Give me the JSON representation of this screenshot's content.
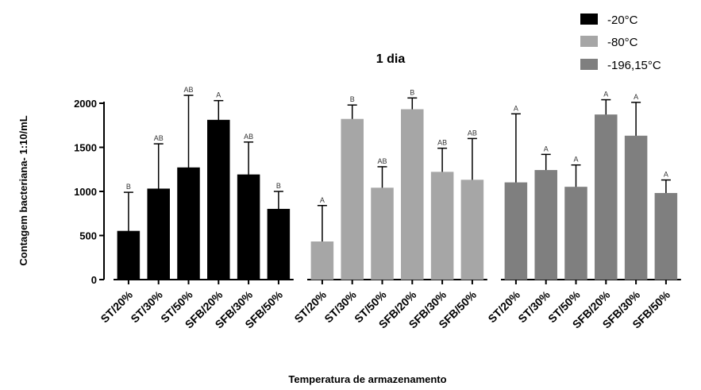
{
  "chart_data": {
    "type": "bar",
    "title": "1 dia",
    "xlabel": "Temperatura de armazenamento",
    "ylabel": "Contagem bacteriana- 1:10/mL",
    "ylim": [
      0,
      2000
    ],
    "yticks": [
      0,
      500,
      1000,
      1500,
      2000
    ],
    "categories": [
      "ST/20%",
      "ST/30%",
      "ST/50%",
      "SFB/20%",
      "SFB/30%",
      "SFB/50%"
    ],
    "legend_position": "top-right",
    "series": [
      {
        "name": "-20°C",
        "color": "#000000",
        "values": [
          550,
          1030,
          1270,
          1810,
          1190,
          800
        ],
        "errors": [
          440,
          510,
          820,
          220,
          370,
          200
        ],
        "labels": [
          "B",
          "AB",
          "AB",
          "A",
          "AB",
          "B"
        ]
      },
      {
        "name": "-80°C",
        "color": "#a6a6a6",
        "values": [
          430,
          1820,
          1040,
          1930,
          1220,
          1130
        ],
        "errors": [
          410,
          160,
          240,
          130,
          270,
          470
        ],
        "labels": [
          "A",
          "B",
          "AB",
          "B",
          "AB",
          "AB"
        ]
      },
      {
        "name": "-196,15°C",
        "color": "#7f7f7f",
        "values": [
          1100,
          1240,
          1050,
          1870,
          1630,
          980
        ],
        "errors": [
          780,
          180,
          250,
          170,
          380,
          150
        ],
        "labels": [
          "A",
          "A",
          "A",
          "A",
          "A",
          "A"
        ]
      }
    ]
  }
}
